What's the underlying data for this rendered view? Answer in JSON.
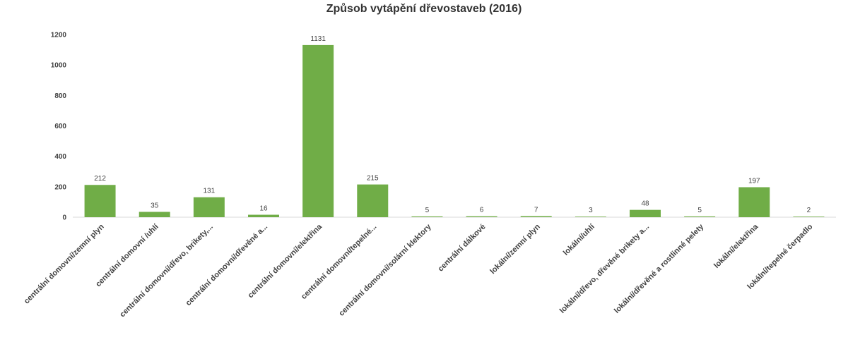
{
  "chart_data": {
    "type": "bar",
    "title": "Způsob vytápění dřevostaveb (2016)",
    "xlabel": "",
    "ylabel": "",
    "categories": [
      "centrální domovní/zemní plyn",
      "centrální domovní /uhlí",
      "centrální domovní/dřevo, brikety,...",
      "centrální domovní/dřevěné a...",
      "centrální domovní/elektřina",
      "centrální domovní/tepelné...",
      "centrální domovní/solární klektory",
      "centrální dálkové",
      "lokální/zemní plyn",
      "lokální/uhlí",
      "lokální/dřevo, dřevěné brikety a...",
      "lokální/dřevěné a rostlinné pelety",
      "lokální/elektřina",
      "lokální/tepelné čerpadlo"
    ],
    "values": [
      212,
      35,
      131,
      16,
      1131,
      215,
      5,
      6,
      7,
      3,
      48,
      5,
      197,
      2
    ],
    "ylim": [
      0,
      1200
    ],
    "yticks": [
      0,
      200,
      400,
      600,
      800,
      1000,
      1200
    ],
    "grid": false,
    "legend": "none",
    "data_labels": true,
    "colors": {
      "bar": "#70ad47",
      "axis": "#d9d9d9",
      "text": "#404040"
    }
  }
}
